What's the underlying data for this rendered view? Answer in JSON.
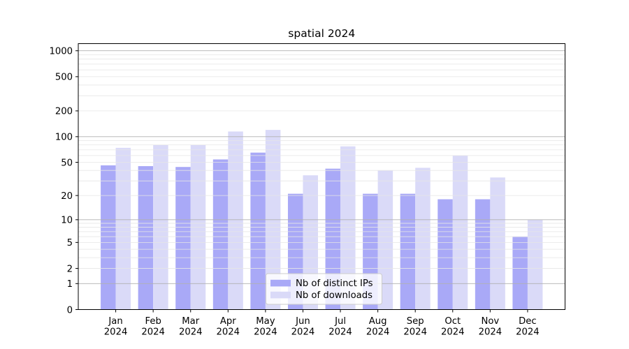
{
  "title": "spatial 2024",
  "chart_data": {
    "type": "bar",
    "title": "spatial 2024",
    "categories": [
      "Jan",
      "Feb",
      "Mar",
      "Apr",
      "May",
      "Jun",
      "Jul",
      "Aug",
      "Sep",
      "Oct",
      "Nov",
      "Dec"
    ],
    "x_year_line": "2024",
    "series": [
      {
        "name": "Nb of distinct IPs",
        "color": "#a9a9f7",
        "values": [
          46,
          45,
          44,
          54,
          65,
          21,
          42,
          21,
          21,
          18,
          18,
          6
        ]
      },
      {
        "name": "Nb of downloads",
        "color": "#dadaf8",
        "values": [
          74,
          80,
          80,
          115,
          120,
          35,
          77,
          40,
          43,
          60,
          33,
          10
        ]
      }
    ],
    "y_axis": {
      "scale": "log1p",
      "tick_values": [
        1000,
        500,
        200,
        100,
        50,
        20,
        10,
        5,
        2,
        1,
        0
      ],
      "tick_labels": [
        "1000",
        "500",
        "200",
        "100",
        "50",
        "20",
        "10",
        "5",
        "2",
        "1",
        "0"
      ],
      "top_value": 1210,
      "major_gridlines": [
        1,
        10,
        100,
        1000
      ],
      "minor_gridlines": [
        2,
        3,
        4,
        5,
        6,
        7,
        8,
        9,
        20,
        30,
        40,
        50,
        60,
        70,
        80,
        90,
        200,
        300,
        400,
        500,
        600,
        700,
        800,
        900
      ]
    },
    "legend": {
      "position": "lower center",
      "entries": [
        "Nb of distinct IPs",
        "Nb of downloads"
      ]
    },
    "grid": true,
    "colors": {
      "major_grid": "#b0b0b0",
      "minor_grid": "#e6e6e6",
      "axis": "#000000",
      "legend_border": "#cccccc",
      "legend_bg": "#ffffff"
    }
  }
}
